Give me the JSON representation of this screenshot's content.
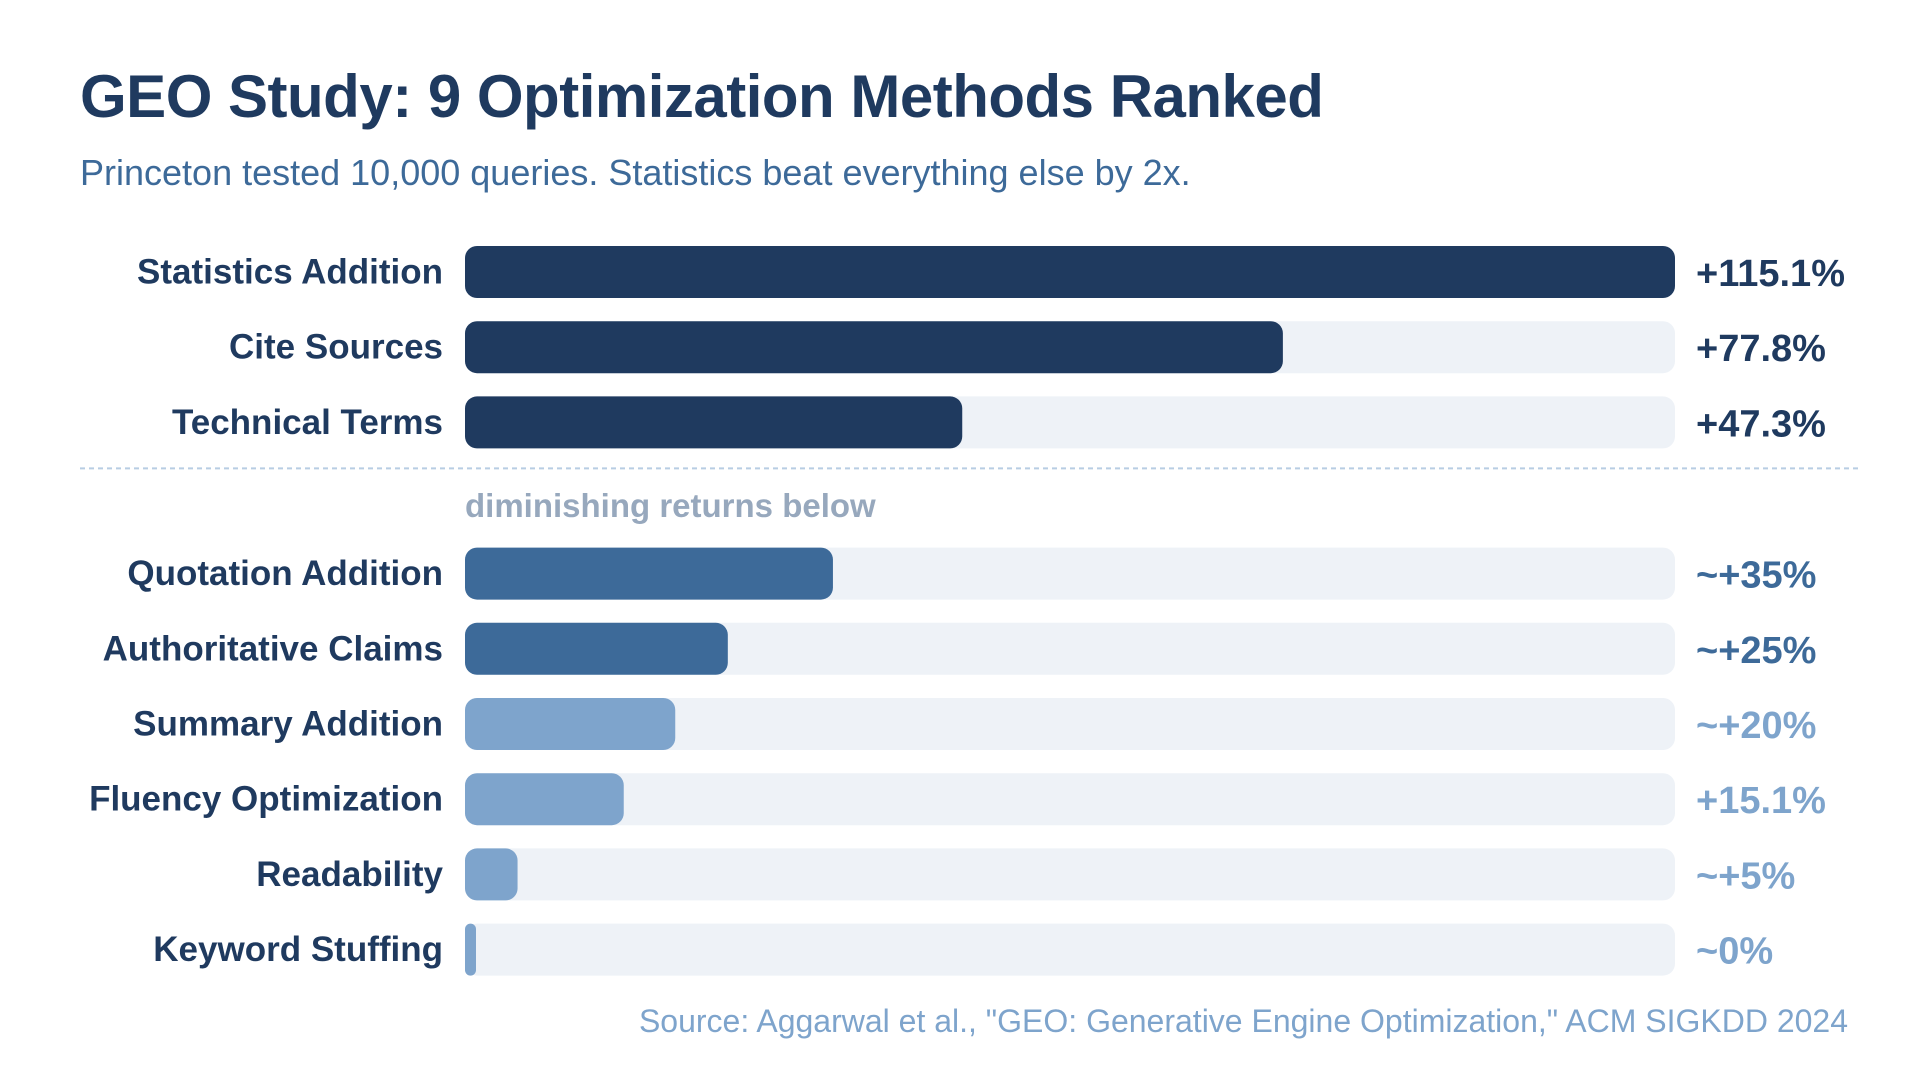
{
  "chart_data": {
    "type": "bar",
    "orientation": "horizontal",
    "title": "GEO Study: 9 Optimization Methods Ranked",
    "subtitle": "Princeton tested 10,000 queries. Statistics beat everything else by 2x.",
    "source": "Source: Aggarwal et al., \"GEO: Generative Engine Optimization,\" ACM SIGKDD 2024",
    "divider_label": "diminishing returns below",
    "divider_after_index": 2,
    "xlim": [
      0,
      115.1
    ],
    "grid": false,
    "legend": "none",
    "colors": {
      "top_tier": "#1f3a5f",
      "mid_tier": "#3d6a99",
      "low_tier": "#7ea4cc",
      "track": "#eef2f7"
    },
    "categories": [
      "Statistics Addition",
      "Cite Sources",
      "Technical Terms",
      "Quotation Addition",
      "Authoritative Claims",
      "Summary Addition",
      "Fluency Optimization",
      "Readability",
      "Keyword Stuffing"
    ],
    "values": [
      115.1,
      77.8,
      47.3,
      35,
      25,
      20,
      15.1,
      5,
      0
    ],
    "value_labels": [
      "+115.1%",
      "+77.8%",
      "+47.3%",
      "~+35%",
      "~+25%",
      "~+20%",
      "+15.1%",
      "~+5%",
      "~0%"
    ],
    "tiers": [
      "top",
      "top",
      "top",
      "mid",
      "mid",
      "low",
      "low",
      "low",
      "low"
    ]
  }
}
